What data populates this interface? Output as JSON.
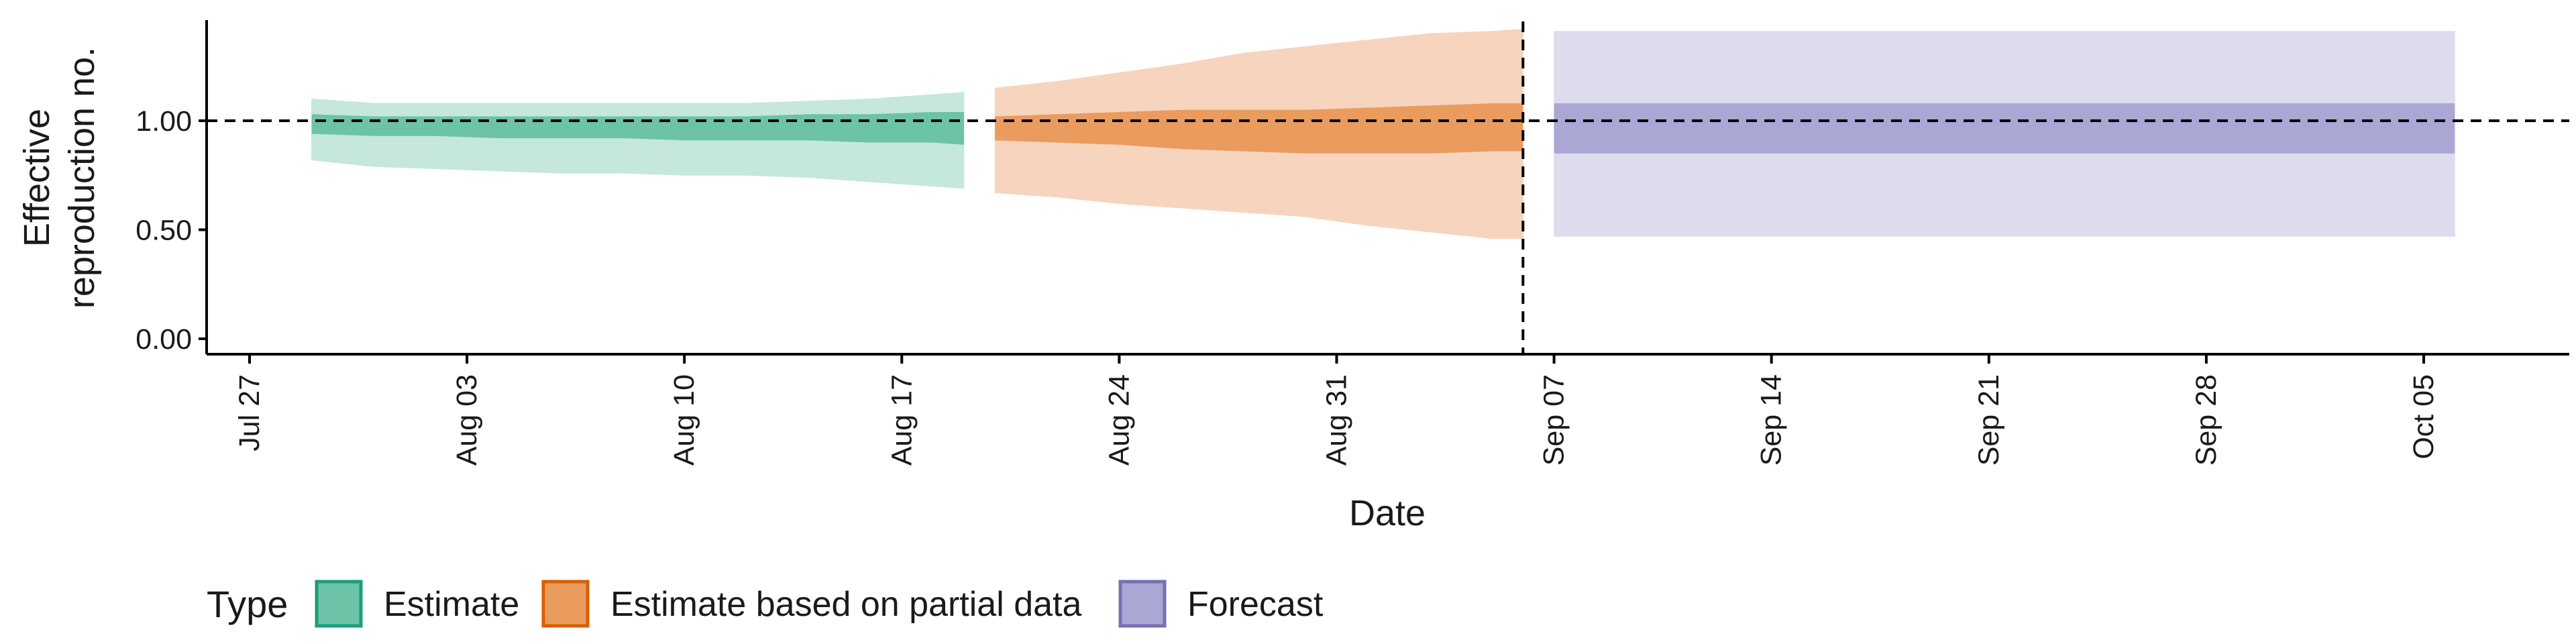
{
  "chart_data": {
    "type": "area",
    "xlabel": "Date",
    "ylabel": [
      "Effective",
      "reproduction no."
    ],
    "ylim": [
      0,
      1.46
    ],
    "xlim": [
      "2020-07-24",
      "2020-10-10"
    ],
    "y_ticks": [
      {
        "value": 0.0,
        "label": "0.00"
      },
      {
        "value": 0.5,
        "label": "0.50"
      },
      {
        "value": 1.0,
        "label": "1.00"
      }
    ],
    "x_ticks": [
      {
        "date": "2020-07-27",
        "label": "Jul 27"
      },
      {
        "date": "2020-08-03",
        "label": "Aug 03"
      },
      {
        "date": "2020-08-10",
        "label": "Aug 10"
      },
      {
        "date": "2020-08-17",
        "label": "Aug 17"
      },
      {
        "date": "2020-08-24",
        "label": "Aug 24"
      },
      {
        "date": "2020-08-31",
        "label": "Aug 31"
      },
      {
        "date": "2020-09-07",
        "label": "Sep 07"
      },
      {
        "date": "2020-09-14",
        "label": "Sep 14"
      },
      {
        "date": "2020-09-21",
        "label": "Sep 21"
      },
      {
        "date": "2020-09-28",
        "label": "Sep 28"
      },
      {
        "date": "2020-10-05",
        "label": "Oct 05"
      }
    ],
    "reference_line_y": 1.0,
    "reference_line_date": "2020-09-06",
    "grid": false,
    "legend_position": "bottom-left",
    "legend_title": "Type",
    "series": [
      {
        "name": "Estimate",
        "color": "#1b9e77",
        "fill_inner": "#6cc3a8",
        "fill_outer": "#c5e7dc",
        "dates": [
          "2020-07-29",
          "2020-07-31",
          "2020-08-02",
          "2020-08-04",
          "2020-08-06",
          "2020-08-08",
          "2020-08-10",
          "2020-08-12",
          "2020-08-14",
          "2020-08-16",
          "2020-08-18",
          "2020-08-19"
        ],
        "lower_90": [
          0.82,
          0.79,
          0.78,
          0.77,
          0.76,
          0.76,
          0.75,
          0.75,
          0.74,
          0.72,
          0.7,
          0.69
        ],
        "upper_90": [
          1.1,
          1.08,
          1.08,
          1.08,
          1.08,
          1.08,
          1.08,
          1.08,
          1.09,
          1.1,
          1.12,
          1.13
        ],
        "lower_50": [
          0.94,
          0.93,
          0.93,
          0.92,
          0.92,
          0.92,
          0.91,
          0.91,
          0.91,
          0.9,
          0.9,
          0.89
        ],
        "upper_50": [
          1.03,
          1.02,
          1.02,
          1.02,
          1.02,
          1.02,
          1.02,
          1.02,
          1.03,
          1.03,
          1.04,
          1.04
        ]
      },
      {
        "name": "Estimate based on partial data",
        "color": "#d95f02",
        "fill_inner": "#e99c5e",
        "fill_outer": "#f6d4be",
        "dates": [
          "2020-08-20",
          "2020-08-22",
          "2020-08-24",
          "2020-08-26",
          "2020-08-28",
          "2020-08-30",
          "2020-09-01",
          "2020-09-03",
          "2020-09-05",
          "2020-09-06"
        ],
        "lower_90": [
          0.67,
          0.65,
          0.62,
          0.6,
          0.58,
          0.56,
          0.52,
          0.49,
          0.46,
          0.46
        ],
        "upper_90": [
          1.15,
          1.18,
          1.22,
          1.26,
          1.31,
          1.34,
          1.37,
          1.4,
          1.41,
          1.42
        ],
        "lower_50": [
          0.91,
          0.9,
          0.89,
          0.87,
          0.86,
          0.85,
          0.85,
          0.85,
          0.86,
          0.86
        ],
        "upper_50": [
          1.02,
          1.03,
          1.04,
          1.05,
          1.05,
          1.05,
          1.06,
          1.07,
          1.08,
          1.08
        ]
      },
      {
        "name": "Forecast",
        "color": "#7570b3",
        "fill_inner": "#aaa7d4",
        "fill_outer": "#dcdcec",
        "dates": [
          "2020-09-07",
          "2020-10-06"
        ],
        "lower_90": [
          0.47,
          0.47
        ],
        "upper_90": [
          1.41,
          1.41
        ],
        "lower_50": [
          0.85,
          0.85
        ],
        "upper_50": [
          1.08,
          1.08
        ]
      }
    ]
  }
}
